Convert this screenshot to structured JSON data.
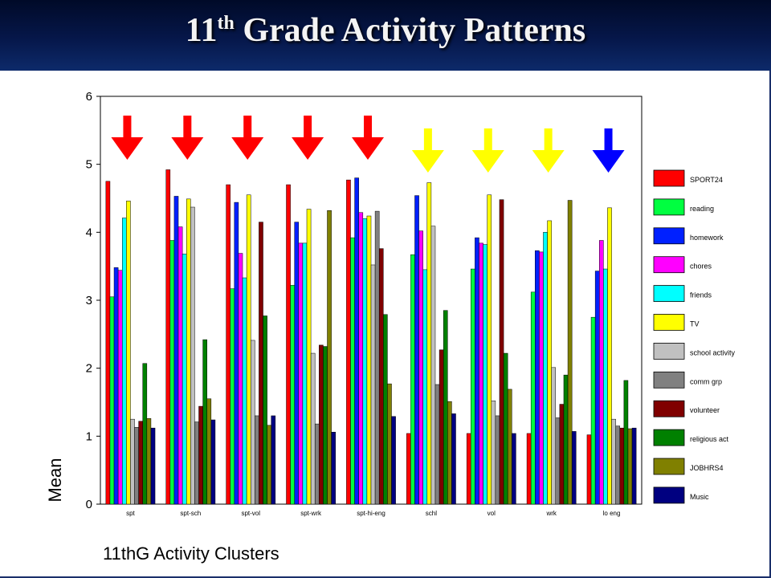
{
  "title": {
    "main_prefix": "11",
    "main_sup": "th",
    "main_suffix": " Grade Activity Patterns"
  },
  "chart_data": {
    "type": "bar",
    "xlabel": "11thG Activity Clusters",
    "ylabel": "Mean",
    "ylim": [
      0,
      6
    ],
    "yticks": [
      0,
      1,
      2,
      3,
      4,
      5,
      6
    ],
    "grid": false,
    "legend_position": "right",
    "categories": [
      "spt",
      "spt-sch",
      "spt-vol",
      "spt-wrk",
      "spt-hi-eng",
      "schl",
      "vol",
      "wrk",
      "lo eng"
    ],
    "series": [
      {
        "name": "SPORT24",
        "color": "#ff0000",
        "values": [
          4.75,
          4.92,
          4.7,
          4.7,
          4.77,
          1.04,
          1.04,
          1.04,
          1.02
        ]
      },
      {
        "name": "reading",
        "color": "#00ff40",
        "values": [
          3.05,
          3.88,
          3.17,
          3.22,
          3.92,
          3.67,
          3.46,
          3.12,
          2.75
        ]
      },
      {
        "name": "homework",
        "color": "#0020ff",
        "values": [
          3.48,
          4.53,
          4.44,
          4.15,
          4.8,
          4.54,
          3.92,
          3.73,
          3.43
        ]
      },
      {
        "name": "chores",
        "color": "#ff00ff",
        "values": [
          3.44,
          4.08,
          3.69,
          3.84,
          4.29,
          4.02,
          3.84,
          3.71,
          3.88
        ]
      },
      {
        "name": "friends",
        "color": "#00ffff",
        "values": [
          4.21,
          3.68,
          3.33,
          3.84,
          4.2,
          3.45,
          3.82,
          4.0,
          3.46
        ]
      },
      {
        "name": "TV",
        "color": "#ffff00",
        "values": [
          4.46,
          4.49,
          4.55,
          4.34,
          4.24,
          4.73,
          4.55,
          4.17,
          4.36
        ]
      },
      {
        "name": "school activity",
        "color": "#c0c0c0",
        "values": [
          1.25,
          4.37,
          2.41,
          2.22,
          3.52,
          4.09,
          1.52,
          2.01,
          1.25
        ]
      },
      {
        "name": "comm grp",
        "color": "#808080",
        "values": [
          1.13,
          1.21,
          1.3,
          1.18,
          4.31,
          1.76,
          1.3,
          1.27,
          1.15
        ]
      },
      {
        "name": "volunteer",
        "color": "#800000",
        "values": [
          1.22,
          1.44,
          4.15,
          2.34,
          3.76,
          2.27,
          4.48,
          1.47,
          1.12
        ]
      },
      {
        "name": "religious act",
        "color": "#008000",
        "values": [
          2.07,
          2.42,
          2.77,
          2.32,
          2.79,
          2.85,
          2.22,
          1.9,
          1.82
        ]
      },
      {
        "name": "JOBHRS4",
        "color": "#808000",
        "values": [
          1.26,
          1.55,
          1.16,
          4.32,
          1.77,
          1.51,
          1.69,
          4.47,
          1.11
        ]
      },
      {
        "name": "Music",
        "color": "#000080",
        "values": [
          1.12,
          1.24,
          1.3,
          1.06,
          1.29,
          1.33,
          1.04,
          1.07,
          1.12
        ]
      }
    ],
    "annotations": {
      "arrows": [
        {
          "category": "spt",
          "color": "#ff0000"
        },
        {
          "category": "spt-sch",
          "color": "#ff0000"
        },
        {
          "category": "spt-vol",
          "color": "#ff0000"
        },
        {
          "category": "spt-wrk",
          "color": "#ff0000"
        },
        {
          "category": "spt-hi-eng",
          "color": "#ff0000"
        },
        {
          "category": "schl",
          "color": "#ffff00"
        },
        {
          "category": "vol",
          "color": "#ffff00"
        },
        {
          "category": "wrk",
          "color": "#ffff00"
        },
        {
          "category": "lo eng",
          "color": "#0000ff"
        }
      ]
    }
  }
}
